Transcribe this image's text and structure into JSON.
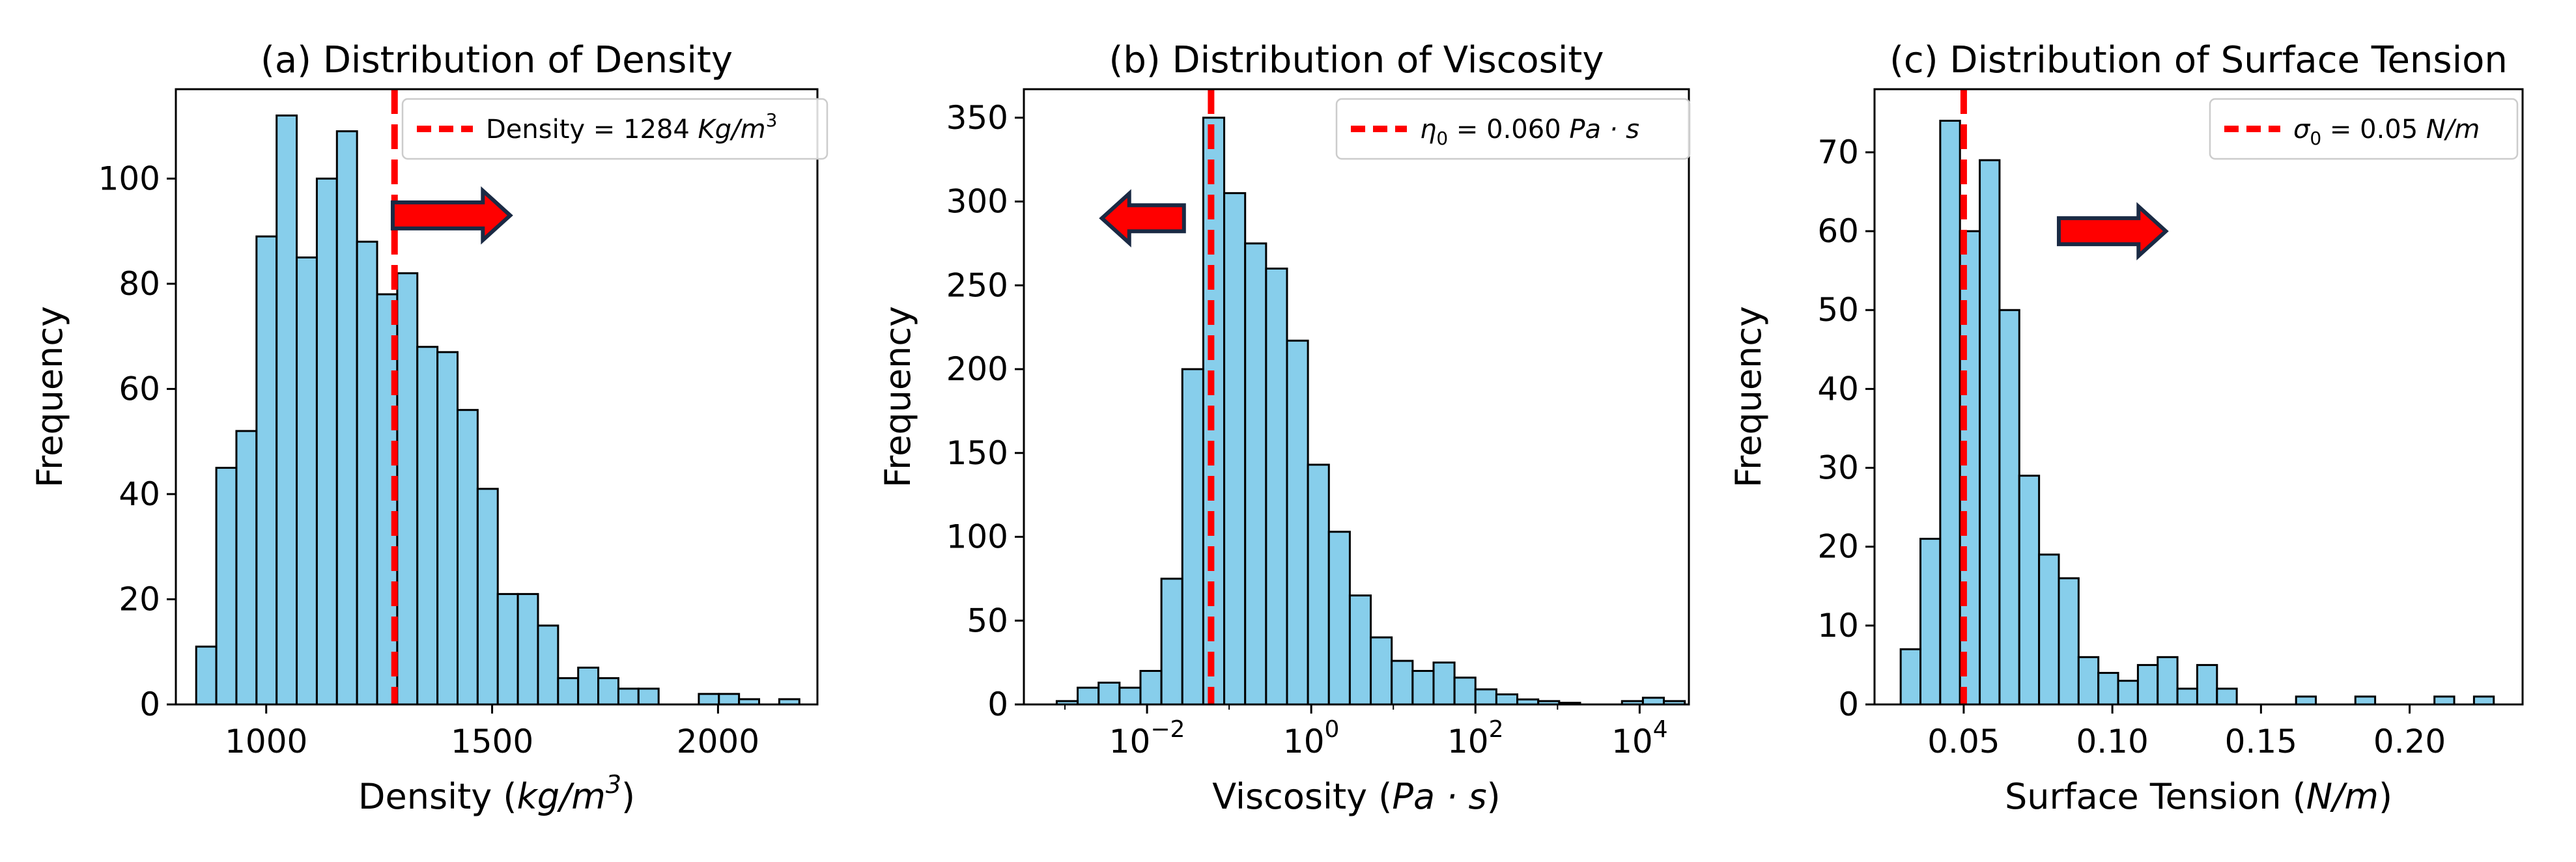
{
  "colors": {
    "bar_fill": "#87CEEB",
    "bar_edge": "#000000",
    "reference_line": "#FF0000",
    "arrow_fill": "#FF0000",
    "arrow_edge": "#1a2a44"
  },
  "chart_data": [
    {
      "type": "bar",
      "subtype": "histogram",
      "title": "(a) Distribution of Density",
      "xlabel": {
        "text": "Density (",
        "math": "kg/m",
        "sup": "3",
        "tail": ")"
      },
      "ylabel": "Frequency",
      "xscale": "linear",
      "xlim": [
        800,
        2220
      ],
      "ylim": [
        0,
        117
      ],
      "xticks": [
        {
          "value": 1000,
          "label": "1000"
        },
        {
          "value": 1500,
          "label": "1500"
        },
        {
          "value": 2000,
          "label": "2000"
        }
      ],
      "yticks": [
        {
          "value": 0,
          "label": "0"
        },
        {
          "value": 20,
          "label": "20"
        },
        {
          "value": 40,
          "label": "40"
        },
        {
          "value": 60,
          "label": "60"
        },
        {
          "value": 80,
          "label": "80"
        },
        {
          "value": 100,
          "label": "100"
        }
      ],
      "bin_start": 845,
      "bin_width": 44.5,
      "values": [
        11,
        45,
        52,
        89,
        112,
        85,
        100,
        109,
        88,
        78,
        82,
        68,
        67,
        56,
        41,
        21,
        21,
        15,
        5,
        7,
        5,
        3,
        3,
        0,
        0,
        2,
        2,
        1,
        0,
        1
      ],
      "reference": {
        "value": 1284
      },
      "legend": {
        "position": "top-right",
        "prefix": "Density = 1284 ",
        "math": "Kg/m",
        "sup": "3"
      },
      "arrow": {
        "direction": "right",
        "from_x": 1280,
        "to_x": 1540,
        "y": 93
      }
    },
    {
      "type": "bar",
      "subtype": "histogram",
      "title": "(b) Distribution of Viscosity",
      "xlabel": {
        "text": "Viscosity (",
        "math": "Pa · s",
        "tail": ")"
      },
      "ylabel": "Frequency",
      "xscale": "log",
      "xlim": [
        -3.5,
        4.6
      ],
      "ylim": [
        0,
        367
      ],
      "xticks": [
        {
          "value": -2,
          "label": "10",
          "sup": "−2"
        },
        {
          "value": 0,
          "label": "10",
          "sup": "0"
        },
        {
          "value": 2,
          "label": "10",
          "sup": "2"
        },
        {
          "value": 4,
          "label": "10",
          "sup": "4"
        }
      ],
      "minor_xticks": [
        -3,
        -1,
        1,
        3
      ],
      "yticks": [
        {
          "value": 0,
          "label": "0"
        },
        {
          "value": 50,
          "label": "50"
        },
        {
          "value": 100,
          "label": "100"
        },
        {
          "value": 150,
          "label": "150"
        },
        {
          "value": 200,
          "label": "200"
        },
        {
          "value": 250,
          "label": "250"
        },
        {
          "value": 300,
          "label": "300"
        },
        {
          "value": 350,
          "label": "350"
        }
      ],
      "bin_start_log10": -3.1,
      "bin_width_log10": 0.255,
      "values": [
        2,
        10,
        13,
        10,
        20,
        75,
        200,
        350,
        305,
        275,
        260,
        217,
        143,
        103,
        65,
        40,
        26,
        20,
        25,
        16,
        9,
        6,
        3,
        2,
        1,
        0,
        0,
        2,
        4,
        2
      ],
      "reference": {
        "value": 0.06,
        "value_log10": -1.22
      },
      "legend": {
        "position": "top-right",
        "math": "η",
        "sub": "0",
        "tail": " = 0.060 ",
        "math2": "Pa · s"
      },
      "arrow": {
        "direction": "left",
        "from_x": -1.55,
        "to_x": -2.55,
        "y": 290
      }
    },
    {
      "type": "bar",
      "subtype": "histogram",
      "title": "(c) Distribution of Surface Tension",
      "xlabel": {
        "text": "Surface Tension (",
        "math": "N/m",
        "tail": ")"
      },
      "ylabel": "Frequency",
      "xscale": "linear",
      "xlim": [
        0.02,
        0.238
      ],
      "ylim": [
        0,
        78
      ],
      "xticks": [
        {
          "value": 0.05,
          "label": "0.05"
        },
        {
          "value": 0.1,
          "label": "0.10"
        },
        {
          "value": 0.15,
          "label": "0.15"
        },
        {
          "value": 0.2,
          "label": "0.20"
        }
      ],
      "yticks": [
        {
          "value": 0,
          "label": "0"
        },
        {
          "value": 10,
          "label": "10"
        },
        {
          "value": 20,
          "label": "20"
        },
        {
          "value": 30,
          "label": "30"
        },
        {
          "value": 40,
          "label": "40"
        },
        {
          "value": 50,
          "label": "50"
        },
        {
          "value": 60,
          "label": "60"
        },
        {
          "value": 70,
          "label": "70"
        }
      ],
      "bin_start": 0.0288,
      "bin_width": 0.00665,
      "values": [
        7,
        21,
        74,
        60,
        69,
        50,
        29,
        19,
        16,
        6,
        4,
        3,
        5,
        6,
        2,
        5,
        2,
        0,
        0,
        0,
        1,
        0,
        0,
        1,
        0,
        0,
        0,
        1,
        0,
        1
      ],
      "reference": {
        "value": 0.05
      },
      "legend": {
        "position": "top-right",
        "math": "σ",
        "sub": "0",
        "tail": " = 0.05 ",
        "math2": "N/m"
      },
      "arrow": {
        "direction": "right",
        "from_x": 0.082,
        "to_x": 0.118,
        "y": 60
      }
    }
  ]
}
